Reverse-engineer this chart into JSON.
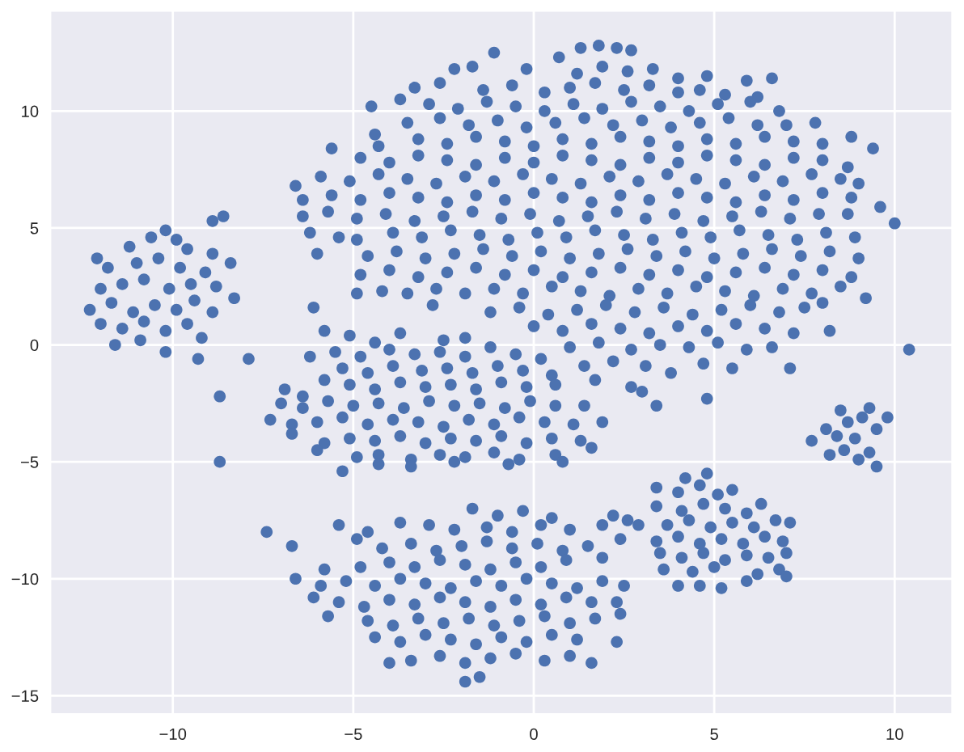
{
  "chart_data": {
    "type": "scatter",
    "color": "#4c72b0",
    "marker": "circle",
    "grid": true,
    "xlim": [
      -13.4,
      11.6
    ],
    "ylim": [
      -15.8,
      14.3
    ],
    "xticks": [
      {
        "value": -10,
        "label": "−10"
      },
      {
        "value": -5,
        "label": "−5"
      },
      0,
      5,
      10
    ],
    "yticks": [
      {
        "value": -15,
        "label": "−15"
      },
      {
        "value": -10,
        "label": "−10"
      },
      {
        "value": -5,
        "label": "−5"
      },
      0,
      5,
      10
    ],
    "x": [
      -12.1,
      -11.2,
      -10.6,
      -10.2,
      -9.9,
      -9.6,
      -8.9,
      -8.6,
      -8.4,
      -8.9,
      -11.8,
      -11.0,
      -10.4,
      -9.8,
      -9.1,
      -12.0,
      -11.4,
      -10.8,
      -10.1,
      -9.5,
      -8.8,
      -8.3,
      -12.3,
      -11.7,
      -11.1,
      -10.5,
      -9.9,
      -9.4,
      -8.9,
      -12.0,
      -11.4,
      -10.8,
      -10.2,
      -9.6,
      -9.2,
      -11.6,
      -10.9,
      -10.2,
      -9.3,
      -7.9,
      -6.1,
      -8.7,
      -8.7,
      -7.4,
      10.4,
      -1.1,
      0.7,
      1.3,
      1.8,
      2.3,
      2.7,
      -2.2,
      -1.7,
      -0.2,
      1.2,
      1.9,
      2.6,
      3.3,
      4.0,
      4.8,
      5.9,
      6.6,
      -3.3,
      -2.6,
      -1.4,
      -0.6,
      0.3,
      1.0,
      1.7,
      2.5,
      3.2,
      4.0,
      4.6,
      5.3,
      6.2,
      -4.5,
      -3.7,
      -2.9,
      -2.1,
      -1.3,
      -0.5,
      0.3,
      1.1,
      1.9,
      2.7,
      3.5,
      4.3,
      5.1,
      6.0,
      6.8,
      -4.4,
      -3.5,
      -2.6,
      -1.8,
      -1.0,
      -0.2,
      0.6,
      1.4,
      2.2,
      3.0,
      3.8,
      4.6,
      5.4,
      6.2,
      7.0,
      7.8,
      -4.3,
      -3.2,
      -2.4,
      -1.6,
      -0.8,
      0.0,
      0.8,
      1.6,
      2.4,
      3.2,
      4.0,
      4.8,
      5.6,
      6.4,
      7.2,
      8.0,
      8.8,
      9.4,
      -5.6,
      -4.8,
      -4.0,
      -3.2,
      -2.4,
      -1.6,
      -0.8,
      0.0,
      0.8,
      1.6,
      2.4,
      3.2,
      4.0,
      4.8,
      5.6,
      6.4,
      7.2,
      8.0,
      8.7,
      -6.6,
      -5.9,
      -5.1,
      -4.3,
      -3.5,
      -2.7,
      -1.9,
      -1.1,
      -0.3,
      0.5,
      1.3,
      2.1,
      2.9,
      3.7,
      4.5,
      5.3,
      6.1,
      6.9,
      7.7,
      8.5,
      9.0,
      -6.4,
      -5.6,
      -4.8,
      -4.0,
      -3.2,
      -2.4,
      -1.6,
      -0.8,
      0.0,
      0.8,
      1.6,
      2.4,
      3.2,
      4.0,
      4.8,
      5.6,
      6.4,
      7.2,
      8.0,
      8.8,
      -6.4,
      -5.7,
      -4.9,
      -4.1,
      -3.3,
      -2.5,
      -1.7,
      -0.9,
      -0.1,
      0.7,
      1.5,
      2.3,
      3.1,
      3.9,
      4.7,
      5.5,
      6.3,
      7.1,
      7.9,
      8.7,
      9.6,
      -6.2,
      -5.4,
      -4.9,
      -3.9,
      -3.1,
      -2.3,
      -1.5,
      -0.7,
      0.1,
      0.9,
      1.7,
      2.5,
      3.3,
      4.1,
      4.9,
      5.7,
      6.5,
      7.3,
      8.1,
      8.9,
      10.0,
      -6.0,
      -4.6,
      -3.8,
      -3.0,
      -2.2,
      -1.4,
      -0.6,
      0.2,
      1.0,
      1.8,
      2.6,
      3.4,
      4.2,
      5.0,
      5.8,
      6.6,
      7.4,
      8.2,
      9.0,
      -4.8,
      -4.0,
      -3.2,
      -2.4,
      -1.6,
      -0.8,
      0.0,
      0.8,
      1.6,
      2.4,
      3.2,
      4.0,
      4.8,
      5.6,
      6.4,
      7.2,
      8.0,
      8.8,
      -4.9,
      -4.2,
      -3.5,
      -2.7,
      -1.9,
      -1.1,
      -0.3,
      0.5,
      1.3,
      2.1,
      2.9,
      3.7,
      4.5,
      5.3,
      6.1,
      6.9,
      7.7,
      8.5,
      9.2,
      -2.8,
      -1.2,
      -0.4,
      0.4,
      1.2,
      2.0,
      2.8,
      3.6,
      4.4,
      5.2,
      6.0,
      6.8,
      7.5,
      8.0,
      0.0,
      0.8,
      1.6,
      2.4,
      3.2,
      4.0,
      4.8,
      5.6,
      6.4,
      7.2,
      8.2,
      1.0,
      1.8,
      2.7,
      3.5,
      4.3,
      5.1,
      5.9,
      6.6,
      1.4,
      2.2,
      3.1,
      3.8,
      4.7,
      5.5,
      7.1,
      2.7,
      3.0,
      3.4,
      4.8,
      -5.8,
      -5.1,
      -4.4,
      -3.7,
      -2.5,
      -1.9,
      -6.2,
      -5.5,
      -4.8,
      -4.0,
      -3.3,
      -2.6,
      -1.9,
      -1.2,
      -0.5,
      0.2,
      -5.3,
      -4.6,
      -3.9,
      -3.1,
      -2.4,
      -1.7,
      -1.0,
      -0.3,
      0.5,
      -6.9,
      -6.4,
      -5.8,
      -5.1,
      -4.4,
      -3.7,
      -3.0,
      -2.3,
      -1.6,
      -0.9,
      -0.2,
      0.6,
      1.7,
      -7.0,
      -6.4,
      -5.7,
      -5.0,
      -4.3,
      -3.6,
      -2.9,
      -2.2,
      -1.5,
      -0.8,
      -0.1,
      0.6,
      1.4,
      -7.3,
      -6.7,
      -6.0,
      -5.3,
      -4.6,
      -3.9,
      -3.2,
      -2.5,
      -1.8,
      -1.1,
      -0.4,
      0.3,
      1.1,
      1.9,
      -6.7,
      -5.8,
      -5.1,
      -4.4,
      -3.7,
      -3.0,
      -2.3,
      -1.6,
      -0.9,
      -0.2,
      0.5,
      1.3,
      -6.0,
      -4.9,
      -4.3,
      -3.4,
      -2.6,
      -1.9,
      -1.1,
      -0.4,
      0.6,
      1.6,
      -5.3,
      -4.3,
      -3.4,
      -2.2,
      -0.7,
      0.8,
      -1.7,
      -1.0,
      -0.3,
      0.5,
      -5.4,
      -4.6,
      -3.7,
      -2.9,
      -2.2,
      -1.3,
      -0.6,
      0.2,
      1.0,
      1.9,
      -6.7,
      -4.9,
      -4.2,
      -3.4,
      -2.7,
      -2.0,
      -1.3,
      -0.6,
      0.1,
      0.8,
      1.5,
      -5.8,
      -4.8,
      -4.0,
      -3.3,
      -2.6,
      -1.9,
      -1.2,
      -0.5,
      0.2,
      0.9,
      1.9,
      -6.6,
      -5.9,
      -5.2,
      -4.4,
      -3.7,
      -3.0,
      -2.3,
      -1.6,
      -0.9,
      -0.2,
      0.5,
      1.2,
      1.9,
      2.5,
      -6.1,
      -5.4,
      -4.7,
      -4.0,
      -3.3,
      -2.6,
      -1.9,
      -1.2,
      -0.5,
      0.2,
      0.9,
      1.6,
      2.3,
      -5.7,
      -4.6,
      -3.9,
      -3.2,
      -2.5,
      -1.8,
      -1.1,
      -0.4,
      0.3,
      1.0,
      1.7,
      2.4,
      -4.4,
      -3.7,
      -3.0,
      -2.3,
      -1.6,
      -0.9,
      -0.2,
      0.5,
      1.2,
      2.3,
      -4.0,
      -3.4,
      -2.6,
      -1.9,
      -1.2,
      -0.5,
      0.3,
      1.0,
      1.6,
      -1.9,
      -1.5,
      2.2,
      2.6,
      2.9,
      2.4,
      4.2,
      4.8,
      3.4,
      4.0,
      4.6,
      5.1,
      5.5,
      3.4,
      4.1,
      4.7,
      5.3,
      5.9,
      6.3,
      3.7,
      4.3,
      4.9,
      5.5,
      6.1,
      6.7,
      7.1,
      3.4,
      4.0,
      4.6,
      5.2,
      5.8,
      6.4,
      6.9,
      3.5,
      4.1,
      4.7,
      5.3,
      5.9,
      6.5,
      7.0,
      3.6,
      4.4,
      5.0,
      6.2,
      6.8,
      7.0,
      4.0,
      4.6,
      5.2,
      5.9,
      7.7,
      8.2,
      8.5,
      9.3,
      9.8,
      9.5,
      9.3,
      8.1,
      8.7,
      8.9,
      9.5,
      8.6,
      9.1,
      8.4,
      9.0
    ],
    "values": [
      3.7,
      4.2,
      4.6,
      4.9,
      4.5,
      4.1,
      5.3,
      5.5,
      3.5,
      3.9,
      3.3,
      3.5,
      3.7,
      3.3,
      3.1,
      2.4,
      2.6,
      2.8,
      2.4,
      2.6,
      2.5,
      2.0,
      1.5,
      1.8,
      1.4,
      1.7,
      1.5,
      1.9,
      1.4,
      0.9,
      0.7,
      1.0,
      0.6,
      0.9,
      0.3,
      0.0,
      0.2,
      -0.3,
      -0.6,
      -0.6,
      1.6,
      -2.2,
      -5.0,
      -8.0,
      -0.2,
      12.5,
      12.3,
      12.7,
      12.8,
      12.7,
      12.6,
      11.8,
      11.9,
      11.8,
      11.6,
      11.9,
      11.7,
      11.8,
      11.4,
      11.5,
      11.3,
      11.4,
      11.0,
      11.2,
      10.9,
      11.1,
      10.8,
      11.0,
      11.2,
      10.9,
      11.1,
      10.8,
      10.9,
      10.7,
      10.6,
      10.2,
      10.5,
      10.3,
      10.1,
      10.4,
      10.2,
      10.0,
      10.3,
      10.1,
      10.4,
      10.2,
      10.0,
      10.3,
      10.4,
      10.0,
      9.0,
      9.5,
      9.7,
      9.4,
      9.6,
      9.3,
      9.5,
      9.7,
      9.4,
      9.6,
      9.3,
      9.5,
      9.7,
      9.4,
      9.4,
      9.5,
      8.5,
      8.8,
      8.6,
      8.9,
      8.7,
      8.5,
      8.8,
      8.6,
      8.9,
      8.7,
      8.5,
      8.8,
      8.6,
      8.9,
      8.7,
      8.6,
      8.9,
      8.4,
      8.4,
      8.0,
      7.8,
      8.1,
      7.9,
      7.7,
      8.0,
      7.8,
      8.1,
      7.9,
      7.7,
      8.0,
      7.8,
      8.1,
      7.9,
      7.7,
      8.0,
      7.9,
      7.6,
      6.8,
      7.2,
      7.0,
      7.3,
      7.1,
      6.9,
      7.2,
      7.0,
      7.3,
      7.1,
      6.9,
      7.2,
      7.0,
      7.3,
      7.1,
      6.9,
      7.2,
      7.0,
      7.3,
      7.1,
      6.9,
      6.2,
      6.4,
      6.2,
      6.5,
      6.3,
      6.1,
      6.4,
      6.2,
      6.5,
      6.3,
      6.1,
      6.4,
      6.2,
      6.5,
      6.3,
      6.1,
      6.4,
      6.2,
      6.5,
      6.3,
      5.5,
      5.7,
      5.4,
      5.6,
      5.3,
      5.5,
      5.7,
      5.4,
      5.6,
      5.3,
      5.5,
      5.7,
      5.4,
      5.6,
      5.3,
      5.5,
      5.7,
      5.4,
      5.6,
      5.6,
      5.9,
      4.8,
      4.6,
      4.5,
      4.8,
      4.6,
      4.9,
      4.7,
      4.5,
      4.8,
      4.6,
      4.9,
      4.7,
      4.5,
      4.8,
      4.6,
      4.9,
      4.7,
      4.5,
      4.8,
      4.6,
      5.2,
      3.9,
      3.8,
      4.0,
      3.7,
      3.9,
      4.1,
      3.8,
      4.0,
      3.7,
      3.9,
      4.1,
      3.8,
      4.0,
      3.7,
      3.9,
      4.1,
      3.8,
      4.0,
      3.7,
      3.0,
      3.2,
      2.9,
      3.1,
      3.3,
      3.0,
      3.2,
      2.9,
      3.1,
      3.3,
      3.0,
      3.2,
      2.9,
      3.1,
      3.3,
      3.0,
      3.2,
      2.9,
      2.2,
      2.3,
      2.2,
      2.4,
      2.2,
      2.4,
      2.2,
      2.5,
      2.3,
      2.1,
      2.4,
      2.2,
      2.5,
      2.3,
      2.1,
      2.4,
      2.2,
      2.5,
      2.0,
      1.7,
      1.4,
      1.6,
      1.3,
      1.5,
      1.7,
      1.4,
      1.6,
      1.3,
      1.5,
      1.7,
      1.4,
      1.6,
      1.8,
      0.8,
      0.6,
      0.9,
      0.7,
      0.5,
      0.8,
      0.6,
      0.9,
      0.7,
      0.5,
      0.6,
      -0.1,
      0.1,
      -0.2,
      0.0,
      -0.1,
      0.1,
      -0.2,
      -0.1,
      -0.9,
      -0.7,
      -0.9,
      -1.2,
      -0.8,
      -1.0,
      -1.0,
      -1.8,
      -2.0,
      -2.6,
      -2.3,
      0.6,
      0.4,
      0.1,
      0.5,
      0.2,
      0.3,
      -0.5,
      -0.3,
      -0.5,
      -0.2,
      -0.4,
      -0.3,
      -0.5,
      -0.1,
      -0.4,
      -0.6,
      -1.0,
      -1.2,
      -0.9,
      -1.1,
      -1.0,
      -1.2,
      -0.9,
      -1.1,
      -1.3,
      -1.9,
      -2.2,
      -1.5,
      -1.7,
      -1.9,
      -1.6,
      -1.8,
      -1.7,
      -1.9,
      -1.6,
      -1.8,
      -1.7,
      -1.5,
      -2.5,
      -2.7,
      -2.4,
      -2.6,
      -2.5,
      -2.7,
      -2.4,
      -2.6,
      -2.5,
      -2.7,
      -2.4,
      -2.6,
      -2.6,
      -3.2,
      -3.4,
      -3.3,
      -3.1,
      -3.4,
      -3.2,
      -3.3,
      -3.5,
      -3.2,
      -3.4,
      -3.1,
      -3.3,
      -3.4,
      -3.3,
      -3.8,
      -4.2,
      -4.0,
      -4.1,
      -3.9,
      -4.2,
      -4.0,
      -4.1,
      -3.9,
      -4.2,
      -4.0,
      -4.1,
      -4.5,
      -4.8,
      -4.7,
      -4.9,
      -4.7,
      -4.8,
      -4.6,
      -4.9,
      -4.7,
      -4.4,
      -5.4,
      -5.1,
      -5.2,
      -5.0,
      -5.1,
      -5.0,
      -7.0,
      -7.3,
      -7.1,
      -7.4,
      -7.7,
      -8.0,
      -7.6,
      -7.7,
      -7.9,
      -7.8,
      -8.0,
      -7.7,
      -7.9,
      -7.7,
      -8.6,
      -8.3,
      -8.7,
      -8.5,
      -8.8,
      -8.6,
      -8.4,
      -8.7,
      -8.5,
      -8.8,
      -8.6,
      -9.6,
      -9.5,
      -9.3,
      -9.5,
      -9.2,
      -9.4,
      -9.6,
      -9.3,
      -9.5,
      -9.2,
      -9.1,
      -10.0,
      -10.3,
      -10.1,
      -10.3,
      -10.0,
      -10.2,
      -10.4,
      -10.1,
      -10.3,
      -10.0,
      -10.2,
      -10.4,
      -10.1,
      -10.3,
      -10.8,
      -11.0,
      -11.2,
      -10.9,
      -11.1,
      -10.8,
      -11.0,
      -11.2,
      -10.9,
      -11.1,
      -10.8,
      -11.0,
      -11.0,
      -11.6,
      -11.8,
      -12.0,
      -11.7,
      -11.9,
      -11.7,
      -12.0,
      -11.8,
      -11.6,
      -11.9,
      -11.7,
      -11.5,
      -12.5,
      -12.7,
      -12.4,
      -12.6,
      -12.8,
      -12.5,
      -12.7,
      -12.4,
      -12.6,
      -12.7,
      -13.6,
      -13.5,
      -13.3,
      -13.6,
      -13.4,
      -13.2,
      -13.5,
      -13.3,
      -13.6,
      -14.4,
      -14.2,
      -7.3,
      -7.5,
      -7.7,
      -8.3,
      -5.7,
      -5.5,
      -6.1,
      -6.3,
      -6.0,
      -6.4,
      -6.2,
      -6.9,
      -7.1,
      -6.8,
      -7.0,
      -7.2,
      -6.8,
      -7.7,
      -7.5,
      -7.8,
      -7.6,
      -7.8,
      -7.5,
      -7.6,
      -8.4,
      -8.2,
      -8.5,
      -8.3,
      -8.5,
      -8.2,
      -8.4,
      -8.9,
      -9.1,
      -8.9,
      -9.2,
      -9.0,
      -9.1,
      -8.9,
      -9.6,
      -9.7,
      -9.5,
      -9.8,
      -9.6,
      -9.9,
      -10.3,
      -10.3,
      -10.4,
      -10.1,
      -4.1,
      -4.7,
      -2.8,
      -2.7,
      -3.1,
      -5.2,
      -4.6,
      -3.6,
      -3.3,
      -4.0,
      -3.6,
      -4.5,
      -3.1,
      -3.9,
      -4.9
    ]
  }
}
